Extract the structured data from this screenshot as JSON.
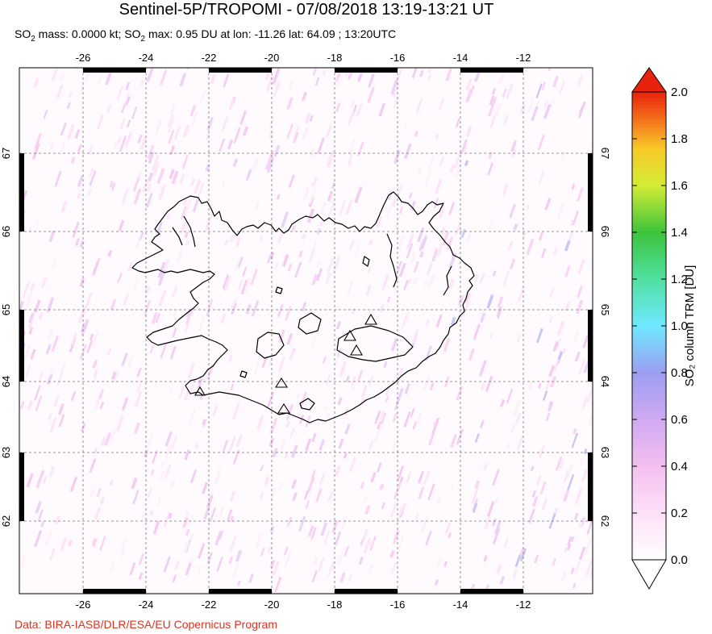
{
  "title": "Sentinel-5P/TROPOMI - 07/08/2018 13:19-13:21 UT",
  "subtitle": {
    "so2_label": "SO",
    "so2_sub": "2",
    "mass_text": " mass: 0.0000 kt; SO",
    "max_sub": "2",
    "max_text": " max: 0.95 DU at lon: -11.26 lat: 64.09 ; 13:20UTC"
  },
  "credit": "Data: BIRA-IASB/DLR/ESA/EU Copernicus Program",
  "map": {
    "lon_ticks": [
      "-26",
      "-24",
      "-22",
      "-20",
      "-18",
      "-16",
      "-14",
      "-12"
    ],
    "lat_ticks": [
      "67",
      "66",
      "65",
      "64",
      "63",
      "62"
    ],
    "region": "Iceland",
    "volcano_marker": "triangle-icon"
  },
  "colorbar": {
    "label": "SO₂ column TRM [DU]",
    "ticks": [
      "2.0",
      "1.8",
      "1.6",
      "1.4",
      "1.2",
      "1.0",
      "0.8",
      "0.6",
      "0.4",
      "0.2",
      "0.0"
    ],
    "min": 0.0,
    "max": 2.0,
    "over_color": "#e8220c",
    "under_color": "#ffffff",
    "colors": [
      "#ffffff",
      "#ffd9f5",
      "#e8b4f0",
      "#b8a2f5",
      "#8aa0f0",
      "#66f0ff",
      "#55e090",
      "#40c440",
      "#c8e83a",
      "#f8e030",
      "#f9a020",
      "#ef4a16",
      "#e8220c"
    ]
  }
}
